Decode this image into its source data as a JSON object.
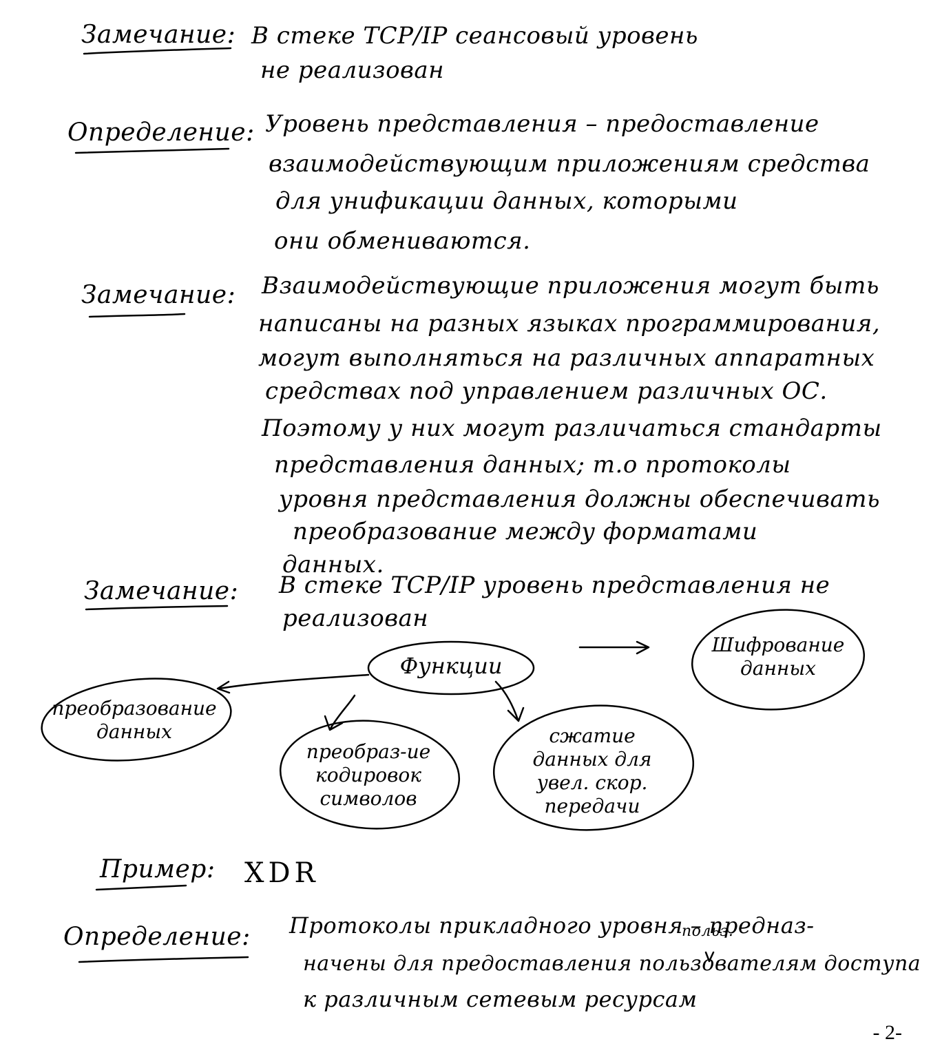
{
  "note1": {
    "label": "Замечание:",
    "lines": [
      "В стеке TCP/IP сеансовый уровень",
      "не реализован"
    ]
  },
  "def1": {
    "label": "Определение:",
    "lines": [
      "Уровень представления – предоставление",
      "взаимодействующим приложениям средства",
      "для унификации данных, которыми",
      "они обмениваются."
    ]
  },
  "note2": {
    "label": "Замечание:",
    "lines": [
      "Взаимодействующие приложения могут быть",
      "написаны на разных языках программирования,",
      "могут выполняться на различных аппаратных",
      "средствах под управлением различных ОС.",
      "Поэтому у них могут различаться стандарты",
      "представления данных; т.о протоколы",
      "уровня представления должны обеспечивать",
      "преобразование между форматами",
      "данных."
    ]
  },
  "note3": {
    "label": "Замечание:",
    "lines": [
      "В стеке TCP/IP уровень представления не",
      "реализован"
    ]
  },
  "diagram": {
    "center": "Функции",
    "encryption": [
      "Шифрование",
      "данных"
    ],
    "conversion": [
      "преобразование",
      "данных"
    ],
    "encoding": [
      "преобраз-ие",
      "кодировок",
      "символов"
    ],
    "compression": [
      "сжатие",
      "данных для",
      "увел. скор.",
      "передачи"
    ]
  },
  "example": {
    "label": "Пример:",
    "value": "XDR"
  },
  "def2": {
    "label": "Определение:",
    "lines": [
      "Протоколы прикладного уровня – предназ-",
      "начены для предоставления пользователям доступа",
      "к различным сетевым ресурсам"
    ],
    "insert": "польз."
  },
  "page_number": "- 2-"
}
